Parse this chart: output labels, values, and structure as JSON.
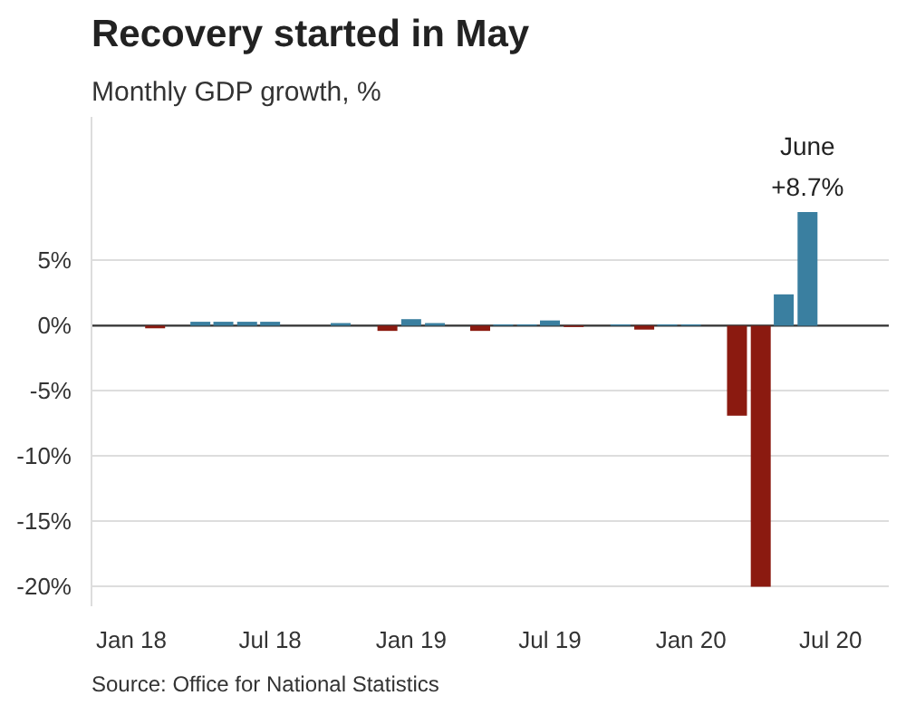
{
  "chart_data": {
    "type": "bar",
    "title": "Recovery started in May",
    "subtitle": "Monthly GDP growth, %",
    "x": [
      "2018-01",
      "2018-02",
      "2018-03",
      "2018-04",
      "2018-05",
      "2018-06",
      "2018-07",
      "2018-08",
      "2018-09",
      "2018-10",
      "2018-11",
      "2018-12",
      "2019-01",
      "2019-02",
      "2019-03",
      "2019-04",
      "2019-05",
      "2019-06",
      "2019-07",
      "2019-08",
      "2019-09",
      "2019-10",
      "2019-11",
      "2019-12",
      "2020-01",
      "2020-02",
      "2020-03",
      "2020-04",
      "2020-05",
      "2020-06"
    ],
    "values": [
      0.0,
      -0.2,
      0.0,
      0.3,
      0.3,
      0.3,
      0.3,
      0.0,
      0.0,
      0.2,
      0.0,
      -0.4,
      0.5,
      0.2,
      0.0,
      -0.4,
      0.1,
      0.1,
      0.4,
      -0.1,
      0.0,
      0.1,
      -0.3,
      0.1,
      0.1,
      0.0,
      -6.9,
      -20.0,
      2.4,
      8.7
    ],
    "colors": [
      "#3a7fa0",
      "#8b1a10",
      "#3a7fa0",
      "#3a7fa0",
      "#3a7fa0",
      "#3a7fa0",
      "#3a7fa0",
      "#3a7fa0",
      "#3a7fa0",
      "#3a7fa0",
      "#3a7fa0",
      "#8b1a10",
      "#3a7fa0",
      "#3a7fa0",
      "#3a7fa0",
      "#8b1a10",
      "#3a7fa0",
      "#3a7fa0",
      "#3a7fa0",
      "#8b1a10",
      "#3a7fa0",
      "#3a7fa0",
      "#8b1a10",
      "#3a7fa0",
      "#3a7fa0",
      "#3a7fa0",
      "#8b1a10",
      "#8b1a10",
      "#3a7fa0",
      "#3a7fa0"
    ],
    "xlim": [
      "2017-11-10",
      "2020-09-15"
    ],
    "xticks": [
      {
        "value": "2018-01",
        "label": "Jan 18"
      },
      {
        "value": "2018-07",
        "label": "Jul 18"
      },
      {
        "value": "2019-01",
        "label": "Jan 19"
      },
      {
        "value": "2019-07",
        "label": "Jul 19"
      },
      {
        "value": "2020-01",
        "label": "Jan 20"
      },
      {
        "value": "2020-07",
        "label": "Jul 20"
      }
    ],
    "ylim": [
      -21.5,
      16
    ],
    "yticks": [
      {
        "value": -20,
        "label": "-20%"
      },
      {
        "value": -15,
        "label": "-15%"
      },
      {
        "value": -10,
        "label": "-10%"
      },
      {
        "value": -5,
        "label": "-5%"
      },
      {
        "value": 0,
        "label": "0%"
      },
      {
        "value": 5,
        "label": "5%"
      }
    ],
    "grid": "y",
    "ref_lines": [
      {
        "axis": "y",
        "value": 0,
        "color": "#333333"
      }
    ],
    "annotations": [
      {
        "text": "June\n+8.7%",
        "x": "2020-06",
        "y": 8.7
      },
      "Source: Office for National Statistics"
    ]
  }
}
